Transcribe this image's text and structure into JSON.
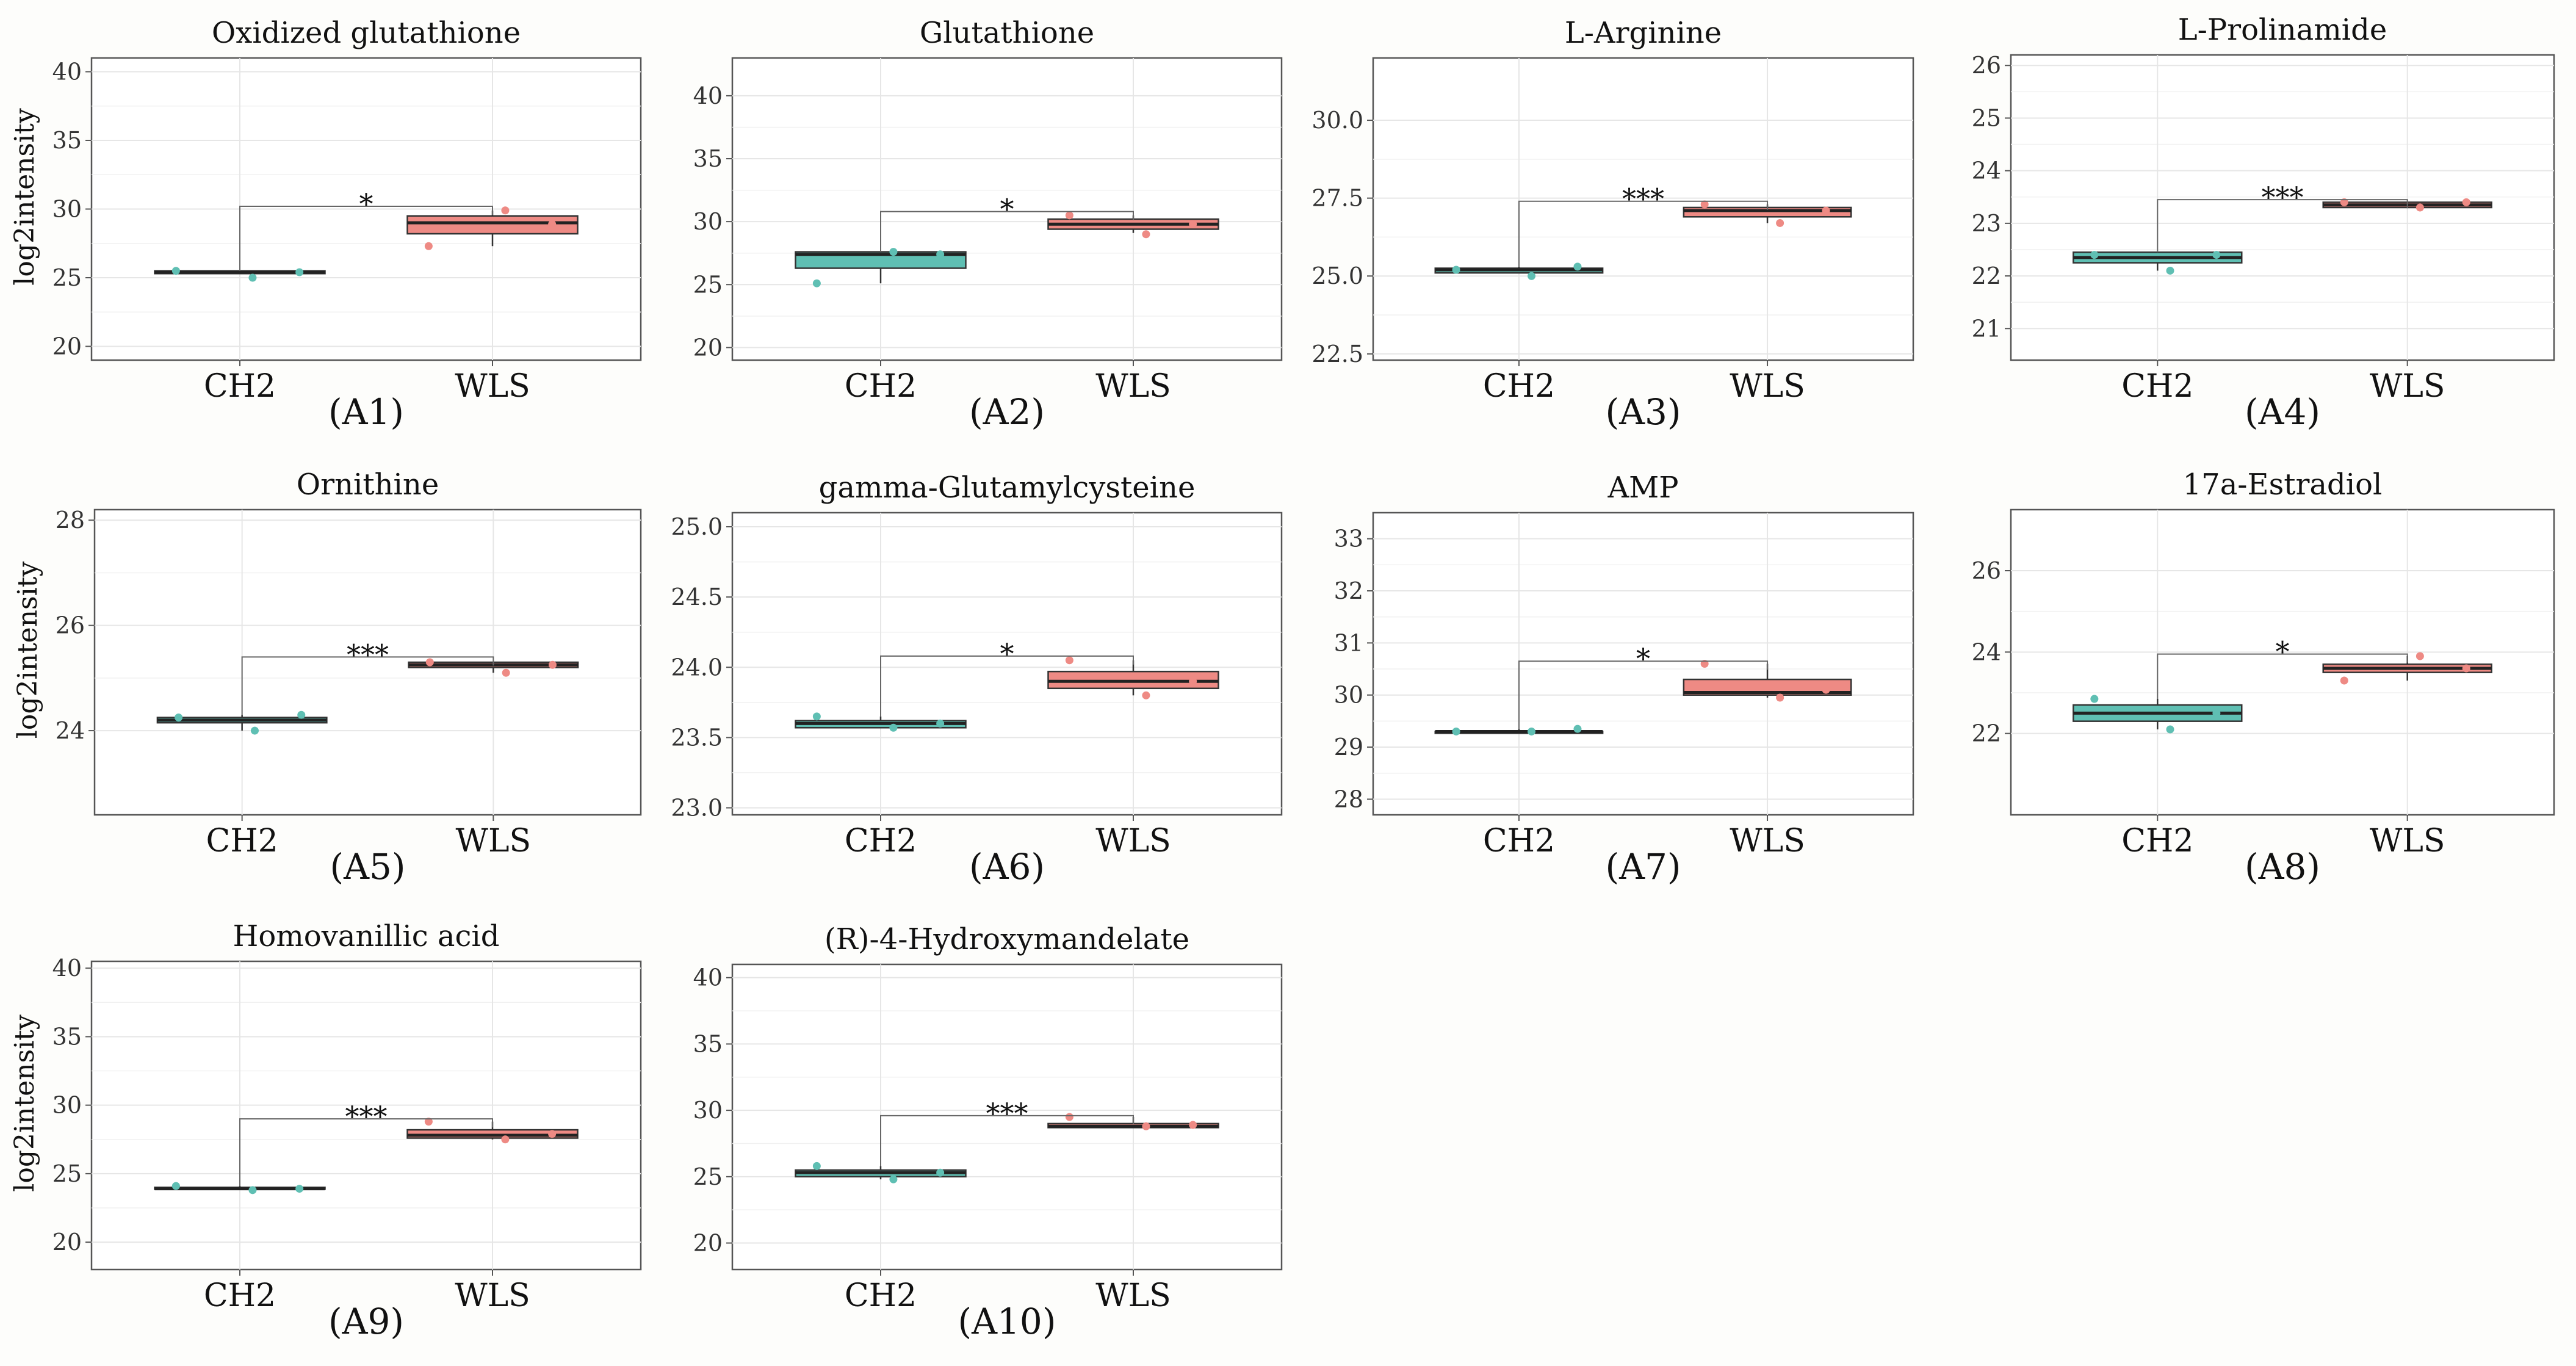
{
  "y_axis_label": "log2intensity",
  "colors": {
    "CH2": "#5fbfb3",
    "WLS": "#ee8a84",
    "grid": "#e6e6e6",
    "frame": "#555555"
  },
  "chart_data": [
    {
      "id": "A1",
      "type": "box",
      "title": "Oxidized glutathione",
      "panel_label": "(A1)",
      "ylabel": "log2intensity",
      "ylim": [
        19,
        41
      ],
      "yticks": [
        20,
        25,
        30,
        35,
        40
      ],
      "ytick_labels": [
        "20",
        "25",
        "30",
        "35",
        "40"
      ],
      "categories": [
        "CH2",
        "WLS"
      ],
      "series": [
        {
          "name": "CH2",
          "q1": 25.3,
          "median": 25.4,
          "q3": 25.5,
          "whisker_low": 25.3,
          "whisker_high": 25.5,
          "points": [
            25.5,
            25.0,
            25.4
          ]
        },
        {
          "name": "WLS",
          "q1": 28.2,
          "median": 29.0,
          "q3": 29.5,
          "whisker_low": 27.3,
          "whisker_high": 29.9,
          "points": [
            27.3,
            29.9,
            28.9
          ]
        }
      ],
      "significance": "*",
      "sig_y": 30.2
    },
    {
      "id": "A2",
      "type": "box",
      "title": "Glutathione",
      "panel_label": "(A2)",
      "ylabel": "",
      "ylim": [
        19,
        43
      ],
      "yticks": [
        20,
        25,
        30,
        35,
        40
      ],
      "ytick_labels": [
        "20",
        "25",
        "30",
        "35",
        "40"
      ],
      "categories": [
        "CH2",
        "WLS"
      ],
      "series": [
        {
          "name": "CH2",
          "q1": 26.3,
          "median": 27.4,
          "q3": 27.6,
          "whisker_low": 25.1,
          "whisker_high": 27.6,
          "points": [
            25.1,
            27.6,
            27.4
          ]
        },
        {
          "name": "WLS",
          "q1": 29.4,
          "median": 29.8,
          "q3": 30.2,
          "whisker_low": 29.1,
          "whisker_high": 30.5,
          "points": [
            30.5,
            29.0,
            29.8
          ]
        }
      ],
      "significance": "*",
      "sig_y": 30.8
    },
    {
      "id": "A3",
      "type": "box",
      "title": "L-Arginine",
      "panel_label": "(A3)",
      "ylabel": "",
      "ylim": [
        22.3,
        32
      ],
      "yticks": [
        22.5,
        25,
        27.5,
        30
      ],
      "ytick_labels": [
        "22.5",
        "25.0",
        "27.5",
        "30.0"
      ],
      "categories": [
        "CH2",
        "WLS"
      ],
      "series": [
        {
          "name": "CH2",
          "q1": 25.1,
          "median": 25.2,
          "q3": 25.25,
          "whisker_low": 25.1,
          "whisker_high": 25.3,
          "points": [
            25.2,
            25.0,
            25.3
          ]
        },
        {
          "name": "WLS",
          "q1": 26.9,
          "median": 27.1,
          "q3": 27.2,
          "whisker_low": 26.7,
          "whisker_high": 27.3,
          "points": [
            27.3,
            26.7,
            27.1
          ]
        }
      ],
      "significance": "***",
      "sig_y": 27.4
    },
    {
      "id": "A4",
      "type": "box",
      "title": "L-Prolinamide",
      "panel_label": "(A4)",
      "ylabel": "",
      "ylim": [
        20.4,
        26.2
      ],
      "yticks": [
        21,
        22,
        23,
        24,
        25,
        26
      ],
      "ytick_labels": [
        "21",
        "22",
        "23",
        "24",
        "25",
        "26"
      ],
      "categories": [
        "CH2",
        "WLS"
      ],
      "series": [
        {
          "name": "CH2",
          "q1": 22.25,
          "median": 22.35,
          "q3": 22.45,
          "whisker_low": 22.1,
          "whisker_high": 22.45,
          "points": [
            22.4,
            22.1,
            22.4
          ]
        },
        {
          "name": "WLS",
          "q1": 23.3,
          "median": 23.35,
          "q3": 23.4,
          "whisker_low": 23.3,
          "whisker_high": 23.4,
          "points": [
            23.4,
            23.3,
            23.4
          ]
        }
      ],
      "significance": "***",
      "sig_y": 23.45
    },
    {
      "id": "A5",
      "type": "box",
      "title": "Ornithine",
      "panel_label": "(A5)",
      "ylabel": "log2intensity",
      "ylim": [
        22.4,
        28.2
      ],
      "yticks": [
        24,
        26,
        28
      ],
      "ytick_labels": [
        "24",
        "26",
        "28"
      ],
      "categories": [
        "CH2",
        "WLS"
      ],
      "series": [
        {
          "name": "CH2",
          "q1": 24.15,
          "median": 24.2,
          "q3": 24.25,
          "whisker_low": 24.0,
          "whisker_high": 24.3,
          "points": [
            24.25,
            24.0,
            24.3
          ]
        },
        {
          "name": "WLS",
          "q1": 25.2,
          "median": 25.25,
          "q3": 25.3,
          "whisker_low": 25.1,
          "whisker_high": 25.3,
          "points": [
            25.3,
            25.1,
            25.25
          ]
        }
      ],
      "significance": "***",
      "sig_y": 25.4
    },
    {
      "id": "A6",
      "type": "box",
      "title": "gamma-Glutamylcysteine",
      "panel_label": "(A6)",
      "ylabel": "",
      "ylim": [
        22.95,
        25.1
      ],
      "yticks": [
        23,
        23.5,
        24,
        24.5,
        25
      ],
      "ytick_labels": [
        "23.0",
        "23.5",
        "24.0",
        "24.5",
        "25.0"
      ],
      "categories": [
        "CH2",
        "WLS"
      ],
      "series": [
        {
          "name": "CH2",
          "q1": 23.57,
          "median": 23.6,
          "q3": 23.62,
          "whisker_low": 23.57,
          "whisker_high": 23.65,
          "points": [
            23.65,
            23.57,
            23.6
          ]
        },
        {
          "name": "WLS",
          "q1": 23.85,
          "median": 23.9,
          "q3": 23.97,
          "whisker_low": 23.8,
          "whisker_high": 24.05,
          "points": [
            24.05,
            23.8,
            23.9
          ]
        }
      ],
      "significance": "*",
      "sig_y": 24.08
    },
    {
      "id": "A7",
      "type": "box",
      "title": "AMP",
      "panel_label": "(A7)",
      "ylabel": "",
      "ylim": [
        27.7,
        33.5
      ],
      "yticks": [
        28,
        29,
        30,
        31,
        32,
        33
      ],
      "ytick_labels": [
        "28",
        "29",
        "30",
        "31",
        "32",
        "33"
      ],
      "categories": [
        "CH2",
        "WLS"
      ],
      "series": [
        {
          "name": "CH2",
          "q1": 29.3,
          "median": 29.3,
          "q3": 29.3,
          "whisker_low": 29.3,
          "whisker_high": 29.35,
          "points": [
            29.3,
            29.3,
            29.35
          ]
        },
        {
          "name": "WLS",
          "q1": 30.0,
          "median": 30.05,
          "q3": 30.3,
          "whisker_low": 29.95,
          "whisker_high": 30.6,
          "points": [
            30.6,
            29.95,
            30.1
          ]
        }
      ],
      "significance": "*",
      "sig_y": 30.65
    },
    {
      "id": "A8",
      "type": "box",
      "title": "17a-Estradiol",
      "panel_label": "(A8)",
      "ylabel": "",
      "ylim": [
        20,
        27.5
      ],
      "yticks": [
        22,
        24,
        26
      ],
      "ytick_labels": [
        "22",
        "24",
        "26"
      ],
      "categories": [
        "CH2",
        "WLS"
      ],
      "series": [
        {
          "name": "CH2",
          "q1": 22.3,
          "median": 22.5,
          "q3": 22.7,
          "whisker_low": 22.1,
          "whisker_high": 22.85,
          "points": [
            22.85,
            22.1,
            22.5
          ]
        },
        {
          "name": "WLS",
          "q1": 23.5,
          "median": 23.6,
          "q3": 23.7,
          "whisker_low": 23.3,
          "whisker_high": 23.9,
          "points": [
            23.3,
            23.9,
            23.6
          ]
        }
      ],
      "significance": "*",
      "sig_y": 23.95
    },
    {
      "id": "A9",
      "type": "box",
      "title": "Homovanillic acid",
      "panel_label": "(A9)",
      "ylabel": "log2intensity",
      "ylim": [
        18,
        40.5
      ],
      "yticks": [
        20,
        25,
        30,
        35,
        40
      ],
      "ytick_labels": [
        "20",
        "25",
        "30",
        "35",
        "40"
      ],
      "categories": [
        "CH2",
        "WLS"
      ],
      "series": [
        {
          "name": "CH2",
          "q1": 23.9,
          "median": 23.9,
          "q3": 24.0,
          "whisker_low": 23.8,
          "whisker_high": 24.1,
          "points": [
            24.1,
            23.8,
            23.9
          ]
        },
        {
          "name": "WLS",
          "q1": 27.6,
          "median": 27.8,
          "q3": 28.2,
          "whisker_low": 27.5,
          "whisker_high": 28.8,
          "points": [
            28.8,
            27.5,
            27.9
          ]
        }
      ],
      "significance": "***",
      "sig_y": 29.0
    },
    {
      "id": "A10",
      "type": "box",
      "title": "(R)-4-Hydroxymandelate",
      "panel_label": "(A10)",
      "ylabel": "",
      "ylim": [
        18,
        41
      ],
      "yticks": [
        20,
        25,
        30,
        35,
        40
      ],
      "ytick_labels": [
        "20",
        "25",
        "30",
        "35",
        "40"
      ],
      "categories": [
        "CH2",
        "WLS"
      ],
      "series": [
        {
          "name": "CH2",
          "q1": 25.0,
          "median": 25.3,
          "q3": 25.5,
          "whisker_low": 24.8,
          "whisker_high": 25.8,
          "points": [
            25.8,
            24.8,
            25.3
          ]
        },
        {
          "name": "WLS",
          "q1": 28.7,
          "median": 28.8,
          "q3": 29.0,
          "whisker_low": 28.7,
          "whisker_high": 29.5,
          "points": [
            29.5,
            28.8,
            28.9
          ]
        }
      ],
      "significance": "***",
      "sig_y": 29.6
    }
  ]
}
